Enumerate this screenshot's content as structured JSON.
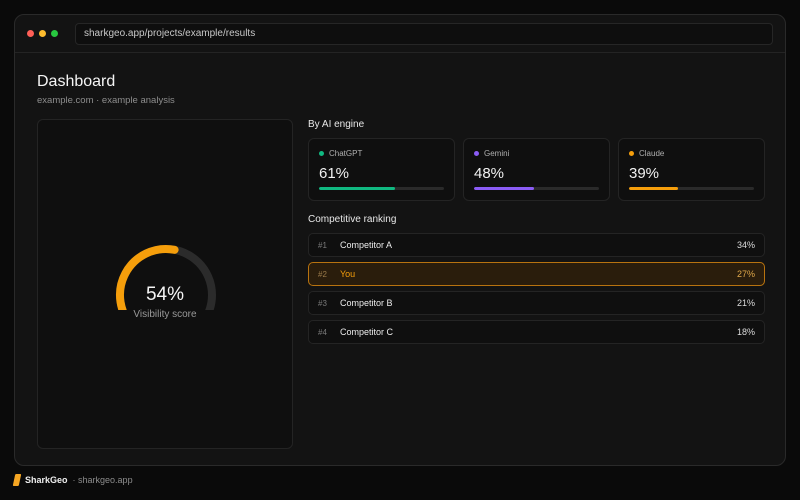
{
  "browser": {
    "url": "sharkgeo.app/projects/example/results",
    "dots": [
      "#ff5f57",
      "#febc2e",
      "#28c840"
    ]
  },
  "header": {
    "title": "Dashboard",
    "subtitle": "example.com · example analysis"
  },
  "score": {
    "value_text": "54%",
    "value": 0.54,
    "label": "Visibility score",
    "color": "#f59e0b"
  },
  "engines": {
    "title": "By AI engine",
    "items": [
      {
        "name": "ChatGPT",
        "value_text": "61%",
        "value": 0.61,
        "color": "#10b981"
      },
      {
        "name": "Gemini",
        "value_text": "48%",
        "value": 0.48,
        "color": "#8b5cf6"
      },
      {
        "name": "Claude",
        "value_text": "39%",
        "value": 0.39,
        "color": "#f59e0b"
      }
    ]
  },
  "ranking": {
    "title": "Competitive ranking",
    "rows": [
      {
        "rank": "#1",
        "name": "Competitor A",
        "pct": "34%"
      },
      {
        "rank": "#2",
        "name": "You",
        "pct": "27%",
        "highlight": true
      },
      {
        "rank": "#3",
        "name": "Competitor B",
        "pct": "21%"
      },
      {
        "rank": "#4",
        "name": "Competitor C",
        "pct": "18%"
      }
    ]
  },
  "footer": {
    "brand": "SharkGeo",
    "sub": "· sharkgeo.app"
  }
}
